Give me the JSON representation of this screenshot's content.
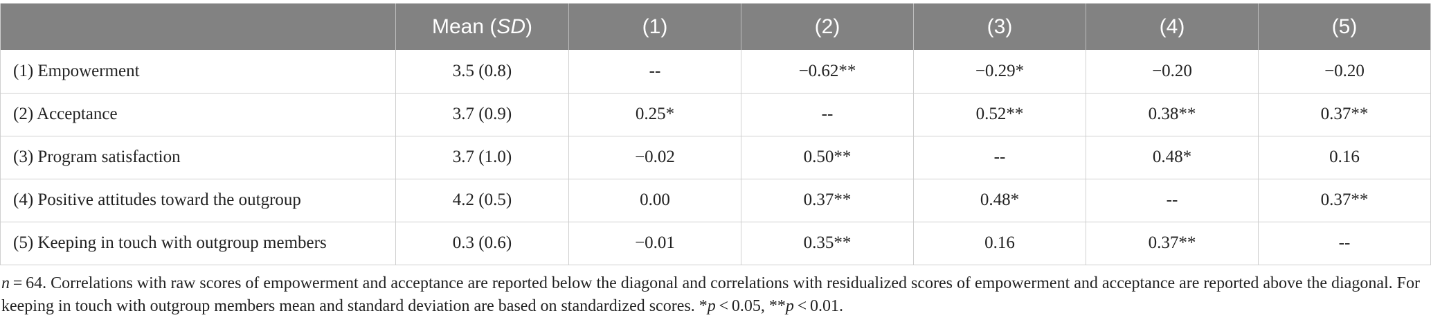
{
  "header": {
    "blank": "",
    "mean_label": "Mean (",
    "sd_label": "SD",
    "mean_close": ")",
    "cols": [
      "(1)",
      "(2)",
      "(3)",
      "(4)",
      "(5)"
    ]
  },
  "rows": [
    {
      "label": "(1) Empowerment",
      "mean": "3.5 (0.8)",
      "values": [
        "--",
        "−0.62**",
        "−0.29*",
        "−0.20",
        "−0.20"
      ]
    },
    {
      "label": "(2) Acceptance",
      "mean": "3.7 (0.9)",
      "values": [
        "0.25*",
        "--",
        "0.52**",
        "0.38**",
        "0.37**"
      ]
    },
    {
      "label": "(3) Program satisfaction",
      "mean": "3.7 (1.0)",
      "values": [
        "−0.02",
        "0.50**",
        "--",
        "0.48*",
        "0.16"
      ]
    },
    {
      "label": "(4) Positive attitudes toward the outgroup",
      "mean": "4.2 (0.5)",
      "values": [
        "0.00",
        "0.37**",
        "0.48*",
        "--",
        "0.37**"
      ]
    },
    {
      "label": "(5) Keeping in touch with outgroup members",
      "mean": "0.3 (0.6)",
      "values": [
        "−0.01",
        "0.35**",
        "0.16",
        "0.37**",
        "--"
      ]
    }
  ],
  "note": {
    "n_symbol": "n",
    "n_value": " = 64. Correlations with raw scores of empowerment and acceptance are reported below the diagonal and correlations with residualized scores of empowerment and acceptance are reported above the diagonal. For keeping in touch with outgroup members mean and standard deviation are based on standardized scores. *",
    "p1_symbol": "p",
    "p1_value": " < 0.05, **",
    "p2_symbol": "p",
    "p2_value": " < 0.01."
  }
}
